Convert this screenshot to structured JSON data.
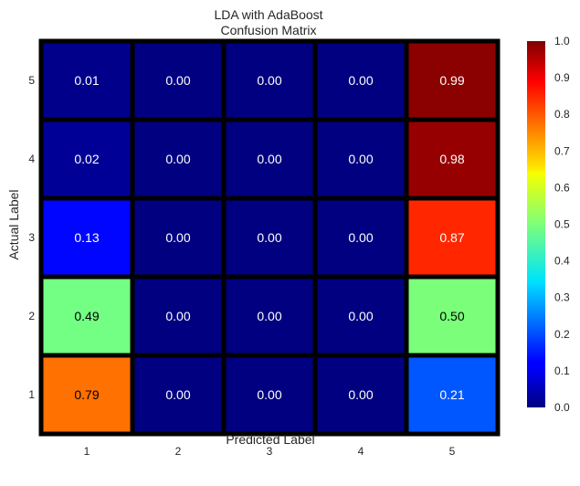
{
  "chart_data": {
    "type": "heatmap",
    "title": "LDA with AdaBoost",
    "subtitle": "Confusion Matrix",
    "xlabel": "Predicted Label",
    "ylabel": "Actual Label",
    "x_categories": [
      "1",
      "2",
      "3",
      "4",
      "5"
    ],
    "y_categories": [
      "1",
      "2",
      "3",
      "4",
      "5"
    ],
    "rows": [
      {
        "actual": "5",
        "values": [
          0.01,
          0.0,
          0.0,
          0.0,
          0.99
        ],
        "labels": [
          "0.01",
          "0.00",
          "0.00",
          "0.00",
          "0.99"
        ]
      },
      {
        "actual": "4",
        "values": [
          0.02,
          0.0,
          0.0,
          0.0,
          0.98
        ],
        "labels": [
          "0.02",
          "0.00",
          "0.00",
          "0.00",
          "0.98"
        ]
      },
      {
        "actual": "3",
        "values": [
          0.13,
          0.0,
          0.0,
          0.0,
          0.87
        ],
        "labels": [
          "0.13",
          "0.00",
          "0.00",
          "0.00",
          "0.87"
        ]
      },
      {
        "actual": "2",
        "values": [
          0.49,
          0.0,
          0.0,
          0.0,
          0.5
        ],
        "labels": [
          "0.49",
          "0.00",
          "0.00",
          "0.00",
          "0.50"
        ]
      },
      {
        "actual": "1",
        "values": [
          0.79,
          0.0,
          0.0,
          0.0,
          0.21
        ],
        "labels": [
          "0.79",
          "0.00",
          "0.00",
          "0.00",
          "0.21"
        ]
      }
    ],
    "colormap": "jet",
    "vmin": 0.0,
    "vmax": 1.0,
    "colorbar_ticks": [
      "0.0",
      "0.1",
      "0.2",
      "0.3",
      "0.4",
      "0.5",
      "0.6",
      "0.7",
      "0.8",
      "0.9",
      "1.0"
    ],
    "cell_border_color": "#000000",
    "grid": false,
    "legend": "colorbar-right"
  }
}
